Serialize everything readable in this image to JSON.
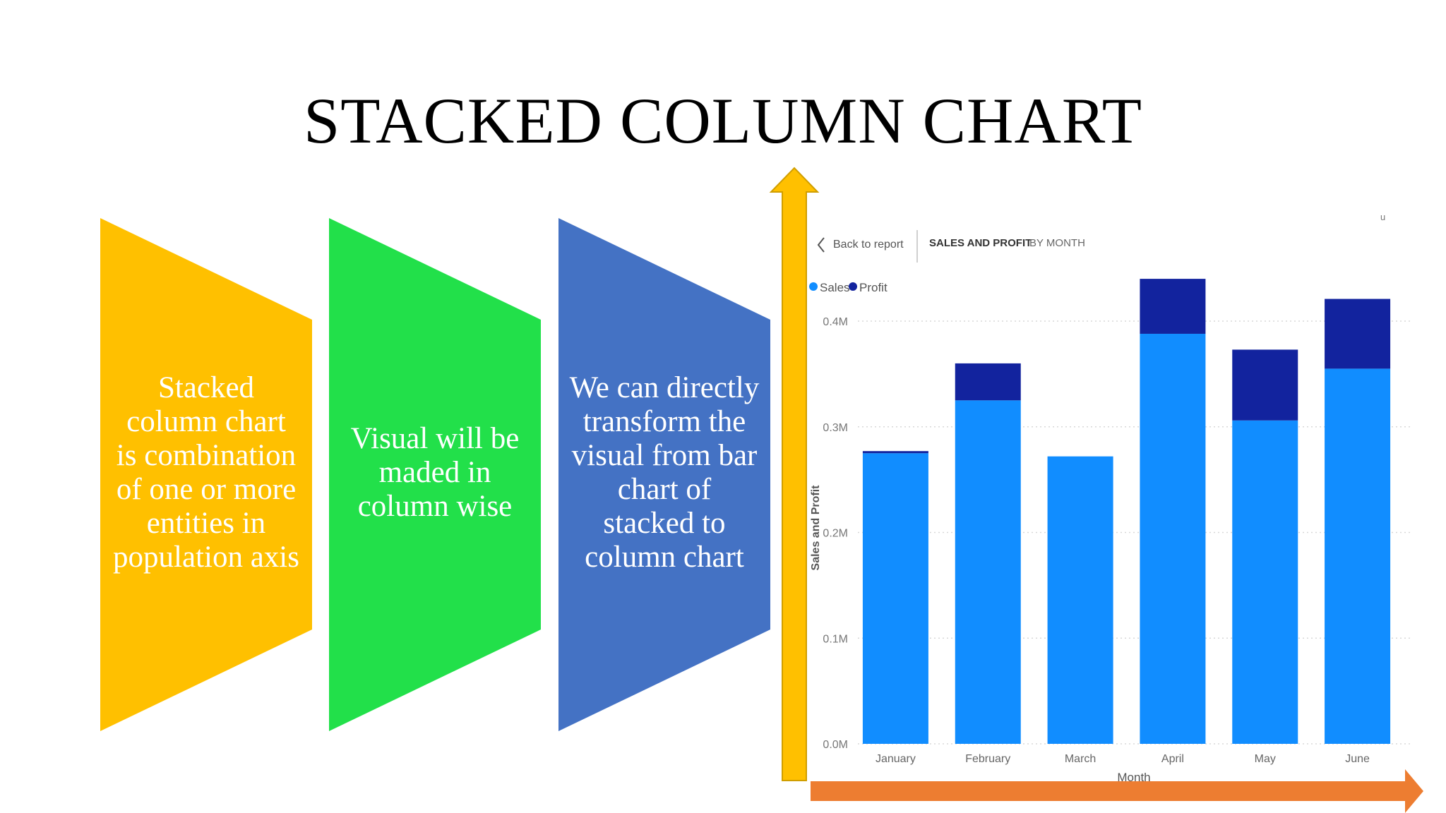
{
  "slide": {
    "title": "STACKED COLUMN CHART",
    "panels": [
      {
        "text": "Stacked column chart is combination of one or more entities in population axis",
        "color": "#FFC000"
      },
      {
        "text": "Visual will be maded in column wise",
        "color": "#22E04A"
      },
      {
        "text": "We can directly transform the visual from bar chart of stacked to column chart",
        "color": "#4472C4"
      }
    ],
    "arrows": {
      "vertical_color": "#FFC000",
      "horizontal_color": "#ED7D31"
    }
  },
  "report": {
    "back_label": "Back to report",
    "header_title": "SALES AND PROFIT",
    "header_subtitle": "BY MONTH",
    "corner_mark": "u",
    "back_icon": "chevron-left-icon"
  },
  "chart_data": {
    "type": "bar",
    "stacked": true,
    "categories": [
      "January",
      "February",
      "March",
      "April",
      "May",
      "June"
    ],
    "series": [
      {
        "name": "Sales",
        "color": "#118DFF",
        "values": [
          0.275,
          0.325,
          0.272,
          0.388,
          0.306,
          0.355
        ]
      },
      {
        "name": "Profit",
        "color": "#12239E",
        "values": [
          0.002,
          0.035,
          0.0,
          0.052,
          0.067,
          0.066
        ]
      }
    ],
    "xlabel": "Month",
    "ylabel": "Sales and Profit",
    "ylim": [
      0,
      0.4
    ],
    "yticks": [
      0,
      0.1,
      0.2,
      0.3,
      0.4
    ],
    "ytick_labels": [
      "0.0M",
      "0.1M",
      "0.2M",
      "0.3M",
      "0.4M"
    ],
    "grid": true,
    "legend": "top-left"
  }
}
